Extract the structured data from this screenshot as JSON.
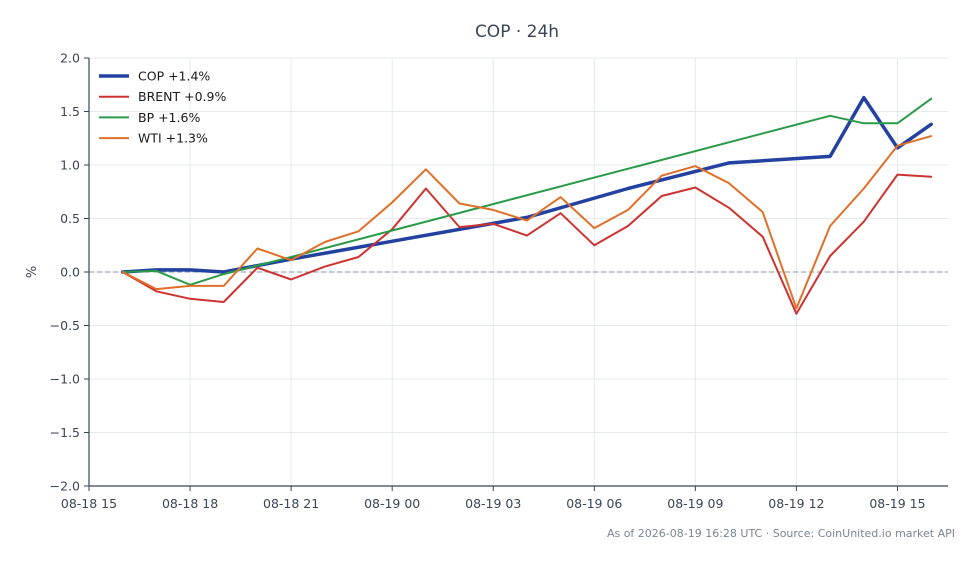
{
  "chart_data": {
    "type": "line",
    "title": "COP · 24h",
    "ylabel": "%",
    "xlabel": "",
    "ylim": [
      -2.0,
      2.0
    ],
    "xlim": [
      0,
      25.5
    ],
    "yticks": [
      "−2.0",
      "−1.5",
      "−1.0",
      "−0.5",
      "0.0",
      "0.5",
      "1.0",
      "1.5",
      "2.0"
    ],
    "ytick_values": [
      -2.0,
      -1.5,
      -1.0,
      -0.5,
      0.0,
      0.5,
      1.0,
      1.5,
      2.0
    ],
    "xticks": [
      "08-18 15",
      "08-18 18",
      "08-18 21",
      "08-19 00",
      "08-19 03",
      "08-19 06",
      "08-19 09",
      "08-19 12",
      "08-19 15"
    ],
    "xtick_values": [
      0,
      3,
      6,
      9,
      12,
      15,
      18,
      21,
      24
    ],
    "grid": true,
    "zero_line": true,
    "legend_position": "top-left",
    "footer": "As of 2026-08-19 16:28 UTC · Source: CoinUnited.io market API",
    "series": [
      {
        "name": "COP +1.4%",
        "color": "#2341a0",
        "width": 3.5,
        "x": [
          1,
          2,
          3,
          4,
          6,
          13,
          16,
          19,
          22,
          23,
          24,
          25
        ],
        "y": [
          0.0,
          0.02,
          0.02,
          0.0,
          0.12,
          0.51,
          0.78,
          1.02,
          1.08,
          1.63,
          1.16,
          1.38
        ]
      },
      {
        "name": "BRENT +0.9%",
        "color": "#cc3330",
        "width": 2,
        "x": [
          1,
          2,
          3,
          4,
          5,
          6,
          7,
          8,
          9,
          10,
          11,
          12,
          13,
          14,
          15,
          16,
          17,
          18,
          19,
          20,
          21,
          22,
          23,
          24,
          25
        ],
        "y": [
          0.0,
          -0.18,
          -0.25,
          -0.28,
          0.04,
          -0.07,
          0.05,
          0.14,
          0.4,
          0.78,
          0.42,
          0.45,
          0.34,
          0.55,
          0.25,
          0.43,
          0.71,
          0.79,
          0.6,
          0.33,
          -0.39,
          0.15,
          0.47,
          0.91,
          0.89
        ]
      },
      {
        "name": "BP +1.6%",
        "color": "#2a9a48",
        "width": 2,
        "x": [
          1,
          2,
          3,
          4,
          6,
          22,
          23,
          24,
          25
        ],
        "y": [
          0.0,
          0.01,
          -0.12,
          -0.02,
          0.14,
          1.46,
          1.39,
          1.39,
          1.62
        ]
      },
      {
        "name": "WTI +1.3%",
        "color": "#e07028",
        "width": 2,
        "x": [
          1,
          2,
          3,
          4,
          5,
          6,
          7,
          8,
          9,
          10,
          11,
          12,
          13,
          14,
          15,
          16,
          17,
          18,
          19,
          20,
          21,
          22,
          23,
          24,
          25
        ],
        "y": [
          0.0,
          -0.16,
          -0.13,
          -0.13,
          0.22,
          0.11,
          0.28,
          0.38,
          0.65,
          0.96,
          0.64,
          0.58,
          0.48,
          0.7,
          0.41,
          0.58,
          0.9,
          0.99,
          0.83,
          0.56,
          -0.34,
          0.43,
          0.78,
          1.18,
          1.27
        ]
      }
    ]
  }
}
